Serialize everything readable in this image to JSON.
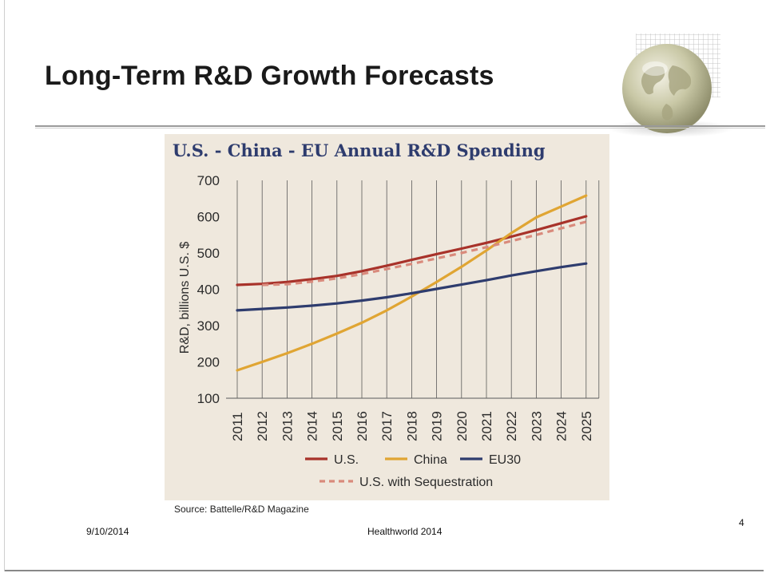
{
  "slide": {
    "title": "Long-Term R&D Growth Forecasts",
    "date": "9/10/2014",
    "footer": "Healthworld 2014",
    "page": "4"
  },
  "chart_data": {
    "type": "line",
    "title": "U.S. - China - EU Annual R&D Spending",
    "xlabel": "",
    "ylabel": "R&D, billions U.S. $",
    "x": [
      "2011",
      "2012",
      "2013",
      "2014",
      "2015",
      "2016",
      "2017",
      "2018",
      "2019",
      "2020",
      "2021",
      "2022",
      "2023",
      "2024",
      "2025"
    ],
    "ylim": [
      100,
      700
    ],
    "yticks": [
      100,
      200,
      300,
      400,
      500,
      600,
      700
    ],
    "grid": "vertical",
    "legend_position": "bottom",
    "series": [
      {
        "name": "U.S.",
        "color": "#a8322a",
        "style": "solid",
        "values": [
          412,
          415,
          420,
          428,
          437,
          450,
          465,
          481,
          497,
          512,
          528,
          545,
          563,
          582,
          601
        ]
      },
      {
        "name": "China",
        "color": "#e0a533",
        "style": "solid",
        "values": [
          177,
          200,
          224,
          250,
          278,
          308,
          342,
          380,
          420,
          462,
          507,
          555,
          598,
          628,
          658
        ]
      },
      {
        "name": "EU30",
        "color": "#2e3c6e",
        "style": "solid",
        "values": [
          342,
          346,
          350,
          355,
          361,
          369,
          378,
          389,
          401,
          413,
          425,
          438,
          450,
          461,
          471
        ]
      },
      {
        "name": "U.S. with Sequestration",
        "color": "#d98a7c",
        "style": "dashed",
        "values": [
          null,
          412,
          414,
          421,
          430,
          442,
          456,
          470,
          485,
          500,
          516,
          533,
          550,
          568,
          586
        ]
      }
    ],
    "source": "Source: Battelle/R&D Magazine"
  }
}
